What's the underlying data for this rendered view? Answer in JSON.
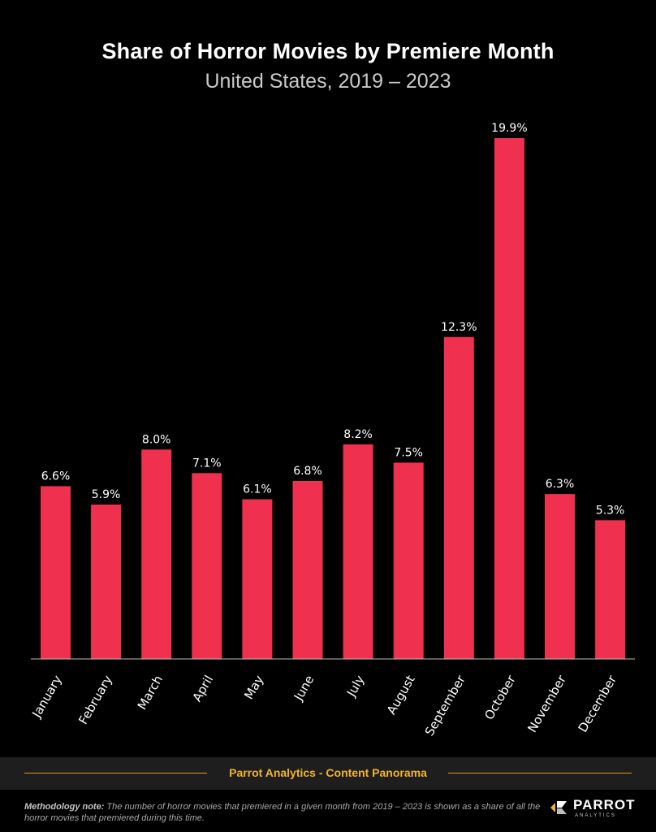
{
  "chart_data": {
    "type": "bar",
    "title": "Share of Horror Movies by Premiere Month",
    "subtitle": "United States, 2019 – 2023",
    "categories": [
      "January",
      "February",
      "March",
      "April",
      "May",
      "June",
      "July",
      "August",
      "September",
      "October",
      "November",
      "December"
    ],
    "values": [
      6.6,
      5.9,
      8.0,
      7.1,
      6.1,
      6.8,
      8.2,
      7.5,
      12.3,
      19.9,
      6.3,
      5.3
    ],
    "value_labels": [
      "6.6%",
      "5.9%",
      "8.0%",
      "7.1%",
      "6.1%",
      "6.8%",
      "8.2%",
      "7.5%",
      "12.3%",
      "19.9%",
      "6.3%",
      "5.3%"
    ],
    "xlabel": "",
    "ylabel": "",
    "ylim": [
      0,
      20.5
    ],
    "grid": false,
    "legend": "none",
    "bar_color": "#f0304f"
  },
  "footer": {
    "source": "Parrot Analytics - Content Panorama",
    "methodology_label": "Methodology note:",
    "methodology_text": " The number of horror movies that premiered in a given month from 2019 – 2023 is shown as a share of all the horror movies that premiered during this time.",
    "logo_word": "PARROT",
    "logo_sub": "ANALYTICS",
    "accent_color": "#f2b230"
  }
}
